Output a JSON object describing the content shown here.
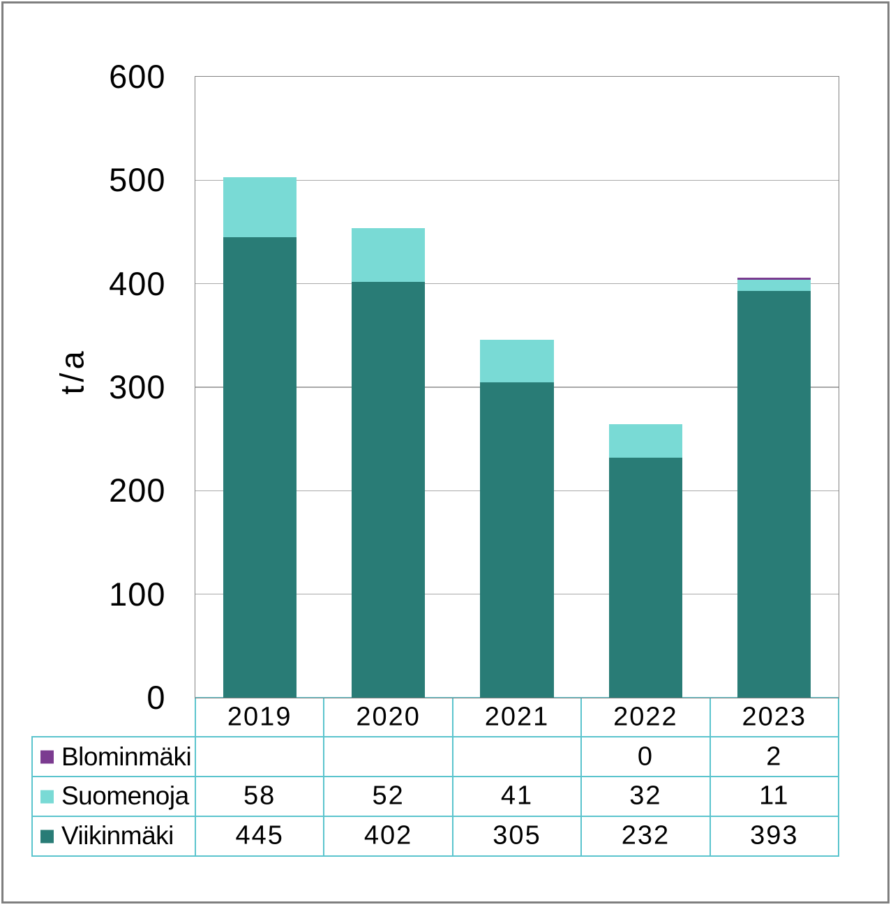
{
  "chart_data": {
    "type": "bar",
    "stacked": true,
    "title": "",
    "xlabel": "",
    "ylabel": "t/a",
    "ylim": [
      0,
      600
    ],
    "ytick_step": 100,
    "grid": true,
    "legend_position": "table-left",
    "categories": [
      "2019",
      "2020",
      "2021",
      "2022",
      "2023"
    ],
    "series": [
      {
        "name": "Viikinmäki",
        "color": "#297c76",
        "values": [
          445,
          402,
          305,
          232,
          393
        ]
      },
      {
        "name": "Suomenoja",
        "color": "#79dad5",
        "values": [
          58,
          52,
          41,
          32,
          11
        ]
      },
      {
        "name": "Blominmäki",
        "color": "#7b3b90",
        "values": [
          null,
          null,
          null,
          0,
          2
        ]
      }
    ],
    "data_table": {
      "column_headers": [
        "2019",
        "2020",
        "2021",
        "2022",
        "2023"
      ],
      "rows": [
        {
          "label": "Blominmäki",
          "cells": [
            "",
            "",
            "",
            "0",
            "2"
          ]
        },
        {
          "label": "Suomenoja",
          "cells": [
            "58",
            "52",
            "41",
            "32",
            "11"
          ]
        },
        {
          "label": "Viikinmäki",
          "cells": [
            "445",
            "402",
            "305",
            "232",
            "393"
          ]
        }
      ]
    }
  },
  "colors": {
    "figure_border": "#7f7f7f",
    "plot_border": "#828282",
    "gridline": "#a9a9a9",
    "axis_line": "#808080",
    "table_border": "#5bc4cd",
    "text": "#000000",
    "background": "#ffffff"
  }
}
